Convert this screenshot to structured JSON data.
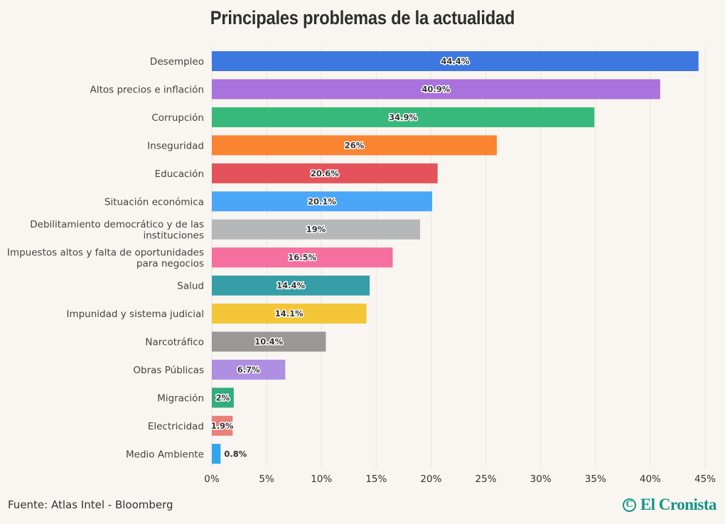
{
  "chart_data": {
    "type": "bar",
    "orientation": "horizontal",
    "title": "Principales problemas de la actualidad",
    "xlabel": "",
    "ylabel": "",
    "xlim": [
      0,
      45
    ],
    "grid": true,
    "x_ticks": [
      "0%",
      "5%",
      "10%",
      "15%",
      "20%",
      "25%",
      "30%",
      "35%",
      "40%",
      "45%"
    ],
    "x_tick_values": [
      0,
      5,
      10,
      15,
      20,
      25,
      30,
      35,
      40,
      45
    ],
    "categories": [
      [
        "Desempleo"
      ],
      [
        "Altos precios e inflación"
      ],
      [
        "Corrupción"
      ],
      [
        "Inseguridad"
      ],
      [
        "Educación"
      ],
      [
        "Situación económica"
      ],
      [
        "Debilitamiento democrático y de las",
        "instituciones"
      ],
      [
        "Impuestos altos y falta de oportunidades",
        "para negocios"
      ],
      [
        "Salud"
      ],
      [
        "Impunidad y sistema judicial"
      ],
      [
        "Narcotráfico"
      ],
      [
        "Obras Públicas"
      ],
      [
        "Migración"
      ],
      [
        "Electricidad"
      ],
      [
        "Medio Ambiente"
      ]
    ],
    "values": [
      44.4,
      40.9,
      34.9,
      26,
      20.6,
      20.1,
      19,
      16.5,
      14.4,
      14.1,
      10.4,
      6.7,
      2,
      1.9,
      0.8
    ],
    "value_labels": [
      "44.4%",
      "40.9%",
      "34.9%",
      "26%",
      "20.6%",
      "20.1%",
      "19%",
      "16.5%",
      "14.4%",
      "14.1%",
      "10.4%",
      "6.7%",
      "2%",
      "1.9%",
      "0.8%"
    ],
    "colors": [
      "#3d78e0",
      "#a972dc",
      "#37b97c",
      "#fb8432",
      "#e4535b",
      "#4aa7f7",
      "#b6b7b9",
      "#f56f9f",
      "#369ea6",
      "#f4c537",
      "#9a9897",
      "#ae8fe2",
      "#2fae7f",
      "#e8817a",
      "#32a5ec"
    ]
  },
  "footer": {
    "source": "Fuente: Atlas Intel - Bloomberg",
    "brand_mark": "€",
    "brand_name": "El Cronista"
  }
}
